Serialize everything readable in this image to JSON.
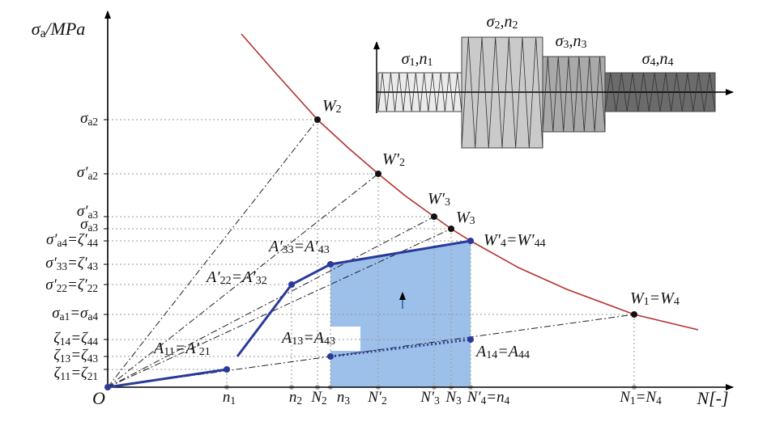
{
  "y_axis_label": [
    {
      "t": "σ"
    },
    {
      "s": "a"
    },
    {
      "t": "/MPa"
    }
  ],
  "x_axis_label": [
    {
      "t": "N[-]"
    }
  ],
  "origin": [
    {
      "t": "O"
    }
  ],
  "yticks": [
    {
      "label": [
        {
          "t": "σ"
        },
        {
          "s": "a2"
        }
      ]
    },
    {
      "label": [
        {
          "t": "σ′"
        },
        {
          "s": "a2"
        }
      ]
    },
    {
      "label": [
        {
          "t": "σ′"
        },
        {
          "s": "a3"
        }
      ]
    },
    {
      "label": [
        {
          "t": "σ"
        },
        {
          "s": "a3"
        }
      ]
    },
    {
      "label": [
        {
          "t": "σ′"
        },
        {
          "s": "a4"
        },
        {
          "t": "=ζ′"
        },
        {
          "s": "44"
        }
      ]
    },
    {
      "label": [
        {
          "t": "σ′"
        },
        {
          "s": "33"
        },
        {
          "t": "=ζ′"
        },
        {
          "s": "43"
        }
      ]
    },
    {
      "label": [
        {
          "t": "σ′"
        },
        {
          "s": "22"
        },
        {
          "t": "=ζ′"
        },
        {
          "s": "22"
        }
      ]
    },
    {
      "label": [
        {
          "t": "σ"
        },
        {
          "s": "a1"
        },
        {
          "t": "=σ"
        },
        {
          "s": "a4"
        }
      ]
    },
    {
      "label": [
        {
          "t": "ζ"
        },
        {
          "s": "14"
        },
        {
          "t": "=ζ"
        },
        {
          "s": "44"
        }
      ]
    },
    {
      "label": [
        {
          "t": "ζ"
        },
        {
          "s": "13"
        },
        {
          "t": "=ζ"
        },
        {
          "s": "43"
        }
      ]
    },
    {
      "label": [
        {
          "t": "ζ"
        },
        {
          "s": "11"
        },
        {
          "t": "=ζ"
        },
        {
          "s": "21"
        }
      ]
    }
  ],
  "xticks": [
    {
      "label": [
        {
          "t": "n"
        },
        {
          "s": "1"
        }
      ]
    },
    {
      "label": [
        {
          "t": "n"
        },
        {
          "s": "2"
        }
      ]
    },
    {
      "label": [
        {
          "t": "N"
        },
        {
          "s": "2"
        }
      ]
    },
    {
      "label": [
        {
          "t": "n"
        },
        {
          "s": "3"
        }
      ]
    },
    {
      "label": [
        {
          "t": "N′"
        },
        {
          "s": "2"
        }
      ]
    },
    {
      "label": [
        {
          "t": "N′"
        },
        {
          "s": "3"
        }
      ]
    },
    {
      "label": [
        {
          "t": "N"
        },
        {
          "s": "3"
        }
      ]
    },
    {
      "label": [
        {
          "t": "N′"
        },
        {
          "s": "4"
        },
        {
          "t": "=n"
        },
        {
          "s": "4"
        }
      ]
    },
    {
      "label": [
        {
          "t": "N"
        },
        {
          "s": "1"
        },
        {
          "t": "=N"
        },
        {
          "s": "4"
        }
      ]
    }
  ],
  "points": [
    {
      "label": [
        {
          "t": "W"
        },
        {
          "s": "2"
        }
      ]
    },
    {
      "label": [
        {
          "t": "W′"
        },
        {
          "s": "2"
        }
      ]
    },
    {
      "label": [
        {
          "t": "W′"
        },
        {
          "s": "3"
        }
      ]
    },
    {
      "label": [
        {
          "t": "W"
        },
        {
          "s": "3"
        }
      ]
    },
    {
      "label": [
        {
          "t": "W′"
        },
        {
          "s": "4"
        },
        {
          "t": "=W′"
        },
        {
          "s": "44"
        }
      ]
    },
    {
      "label": [
        {
          "t": "W"
        },
        {
          "s": "1"
        },
        {
          "t": "=W"
        },
        {
          "s": "4"
        }
      ]
    },
    {
      "label": [
        {
          "t": "A′"
        },
        {
          "s": "33"
        },
        {
          "t": "=A′"
        },
        {
          "s": "43"
        }
      ]
    },
    {
      "label": [
        {
          "t": "A′"
        },
        {
          "s": "22"
        },
        {
          "t": "=A′"
        },
        {
          "s": "32"
        }
      ]
    },
    {
      "label": [
        {
          "t": "A"
        },
        {
          "s": "11"
        },
        {
          "t": "=A′"
        },
        {
          "s": "21"
        }
      ]
    },
    {
      "label": [
        {
          "t": "A"
        },
        {
          "s": "13"
        },
        {
          "t": "=A"
        },
        {
          "s": "43"
        }
      ]
    },
    {
      "label": [
        {
          "t": "A"
        },
        {
          "s": "14"
        },
        {
          "t": "=A"
        },
        {
          "s": "44"
        }
      ]
    }
  ],
  "inset_blocks": [
    {
      "label": [
        {
          "t": "σ"
        },
        {
          "s": "1"
        },
        {
          "t": ",n"
        },
        {
          "s": "1"
        }
      ]
    },
    {
      "label": [
        {
          "t": "σ"
        },
        {
          "s": "2"
        },
        {
          "t": ",n"
        },
        {
          "s": "2"
        }
      ]
    },
    {
      "label": [
        {
          "t": "σ"
        },
        {
          "s": "3"
        },
        {
          "t": ",n"
        },
        {
          "s": "3"
        }
      ]
    },
    {
      "label": [
        {
          "t": "σ"
        },
        {
          "s": "4"
        },
        {
          "t": ",n"
        },
        {
          "s": "4"
        }
      ]
    }
  ]
}
